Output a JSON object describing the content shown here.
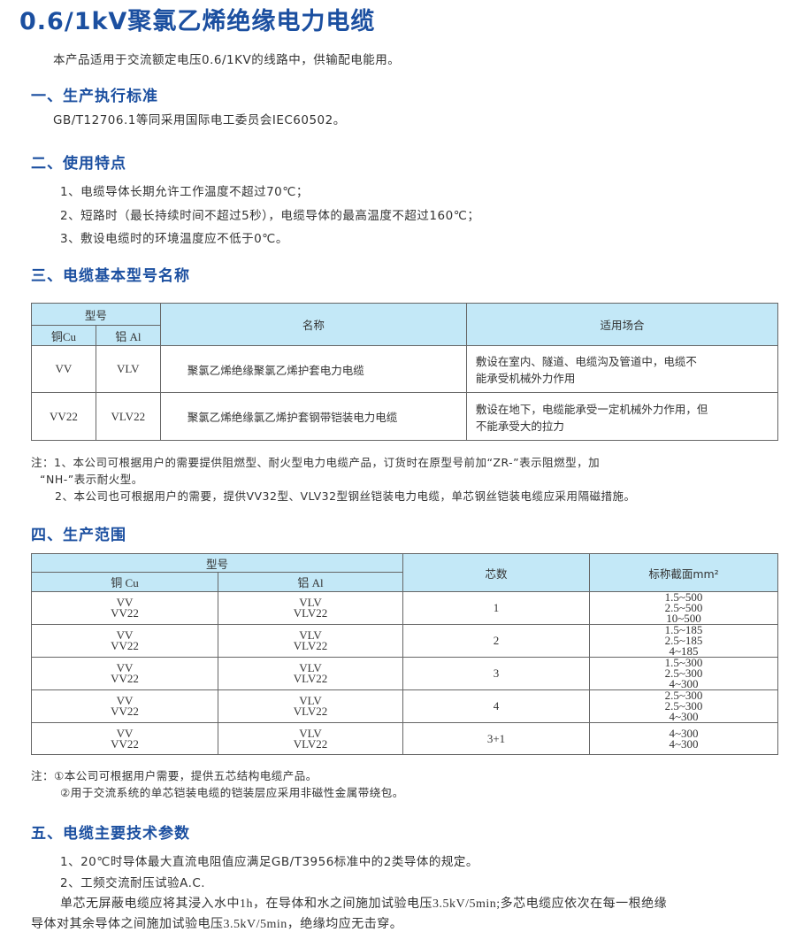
{
  "title": "0.6/1kV聚氯乙烯绝缘电力电缆",
  "intro": "本产品适用于交流额定电压0.6/1KV的线路中，供输配电能用。",
  "sections": [
    {
      "heading": "一、生产执行标准",
      "lines": [
        "GB/T12706.1等同采用国际电工委员会IEC60502。"
      ]
    },
    {
      "heading": "二、使用特点",
      "lines": [
        "1、电缆导体长期允许工作温度不超过70℃；",
        "2、短路时（最长持续时间不超过5秒），电缆导体的最高温度不超过160℃；",
        "3、敷设电缆时的环境温度应不低于0℃。"
      ]
    },
    {
      "heading": "三、电缆基本型号名称"
    },
    {
      "heading": "四、生产范围"
    },
    {
      "heading": "五、电缆主要技术参数",
      "lines": [
        "1、20℃时导体最大直流电阻值应满足GB/T3956标准中的2类导体的规定。",
        "2、工频交流耐压试验A.C.",
        "单芯无屏蔽电缆应将其浸入水中1h，在导体和水之间施加试验电压3.5kV/5min;多芯电缆应依次在每一根绝缘",
        "导体对其余导体之间施加试验电压3.5kV/5min，绝缘均应无击穿。"
      ]
    }
  ],
  "table1": {
    "headers": {
      "model": "型号",
      "cu": "铜Cu",
      "al": "铝 Al",
      "name": "名称",
      "use": "适用场合"
    },
    "rows": [
      {
        "cu": "VV",
        "al": "VLV",
        "name": "聚氯乙烯绝缘聚氯乙烯护套电力电缆",
        "use1": "敷设在室内、隧道、电缆沟及管道中，电缆不",
        "use2": "能承受机械外力作用"
      },
      {
        "cu": "VV22",
        "al": "VLV22",
        "name": "聚氯乙烯绝缘氯乙烯护套钢带铠装电力电缆",
        "use1": "敷设在地下，电缆能承受一定机械外力作用，但",
        "use2": "不能承受大的拉力"
      }
    ],
    "notes": [
      "注：1、本公司可根据用户的需要提供阻燃型、耐火型电力电缆产品，订货时在原型号前加“ZR-”表示阻燃型，加",
      "“NH-”表示耐火型。",
      "2、本公司也可根据用户的需要，提供VV32型、VLV32型钢丝铠装电力电缆，单芯钢丝铠装电缆应采用隔磁措施。"
    ]
  },
  "table2": {
    "headers": {
      "model": "型号",
      "cu": "铜 Cu",
      "al": "铝 Al",
      "cores": "芯数",
      "section": "标称截面mm²"
    },
    "rows": [
      {
        "cu": [
          "VV",
          "VV22"
        ],
        "al": [
          "VLV",
          "VLV22"
        ],
        "cores": "1",
        "section": [
          "1.5~500",
          "2.5~500",
          "10~500"
        ]
      },
      {
        "cu": [
          "VV",
          "VV22"
        ],
        "al": [
          "VLV",
          "VLV22"
        ],
        "cores": "2",
        "section": [
          "1.5~185",
          "2.5~185",
          "4~185"
        ]
      },
      {
        "cu": [
          "VV",
          "VV22"
        ],
        "al": [
          "VLV",
          "VLV22"
        ],
        "cores": "3",
        "section": [
          "1.5~300",
          "2.5~300",
          "4~300"
        ]
      },
      {
        "cu": [
          "VV",
          "VV22"
        ],
        "al": [
          "VLV",
          "VLV22"
        ],
        "cores": "4",
        "section": [
          "2.5~300",
          "2.5~300",
          "4~300"
        ]
      },
      {
        "cu": [
          "VV",
          "VV22"
        ],
        "al": [
          "VLV",
          "VLV22"
        ],
        "cores": "3+1",
        "section": [
          "4~300",
          "4~300"
        ]
      }
    ],
    "notes": [
      "注：①本公司可根据用户需要，提供五芯结构电缆产品。",
      "②用于交流系统的单芯铠装电缆的铠装层应采用非磁性金属带绕包。"
    ]
  },
  "colors": {
    "heading": "#1b4fa0",
    "table_header_bg": "#c3e8f7"
  }
}
